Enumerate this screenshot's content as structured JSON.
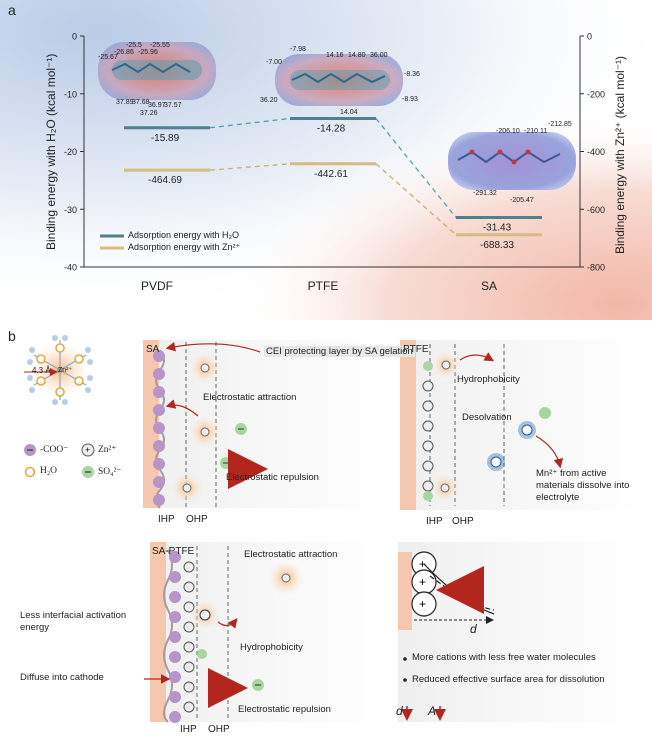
{
  "panel_a": {
    "label": "a",
    "left_axis_title": "Binding energy with H₂O (kcal mol⁻¹)",
    "right_axis_title": "Binding energy with Zn²⁺ (kcal mol⁻¹)",
    "legend": [
      "Adsorption energy with H₂O",
      "Adsorption energy with Zn²⁺"
    ],
    "colors": {
      "h2o": "#4f7f90",
      "zn": "#d7bb80",
      "h2o_dash": "#4aa3b3",
      "zn_dash": "#c9b16e"
    },
    "molecule_labels": {
      "pvdf": [
        "-25.5",
        "-25.55",
        "-25.67",
        "-26.86",
        "-25.96",
        "37.89",
        "37.68",
        "36.97",
        "37.57",
        "37.26"
      ],
      "ptfe": [
        "-7.98",
        "-7.00",
        "14.16",
        "14.80",
        "36.00",
        "-8.36",
        "36.20",
        "14.04",
        "-8.93"
      ],
      "sa": [
        "-212.85",
        "-206.10",
        "-210.11",
        "-291.32",
        "-205.47"
      ]
    }
  },
  "chart_data": {
    "type": "bar",
    "categories": [
      "PVDF",
      "PTFE",
      "SA"
    ],
    "series": [
      {
        "name": "Adsorption energy with H₂O",
        "axis": "left",
        "values": [
          -15.89,
          -14.28,
          -31.43
        ],
        "labels": [
          "-15.89",
          "-14.28",
          "-31.43"
        ]
      },
      {
        "name": "Adsorption energy with Zn²⁺",
        "axis": "right",
        "values": [
          -464.69,
          -442.61,
          -688.33
        ],
        "labels": [
          "-464.69",
          "-442.61",
          "-688.33"
        ]
      }
    ],
    "left_ylim": [
      -40,
      0
    ],
    "left_ticks": [
      "0",
      "-10",
      "-20",
      "-30",
      "-40"
    ],
    "right_ylim": [
      -800,
      0
    ],
    "right_ticks": [
      "0",
      "-200",
      "-400",
      "-600",
      "-800"
    ]
  },
  "panel_b": {
    "label": "b",
    "legend": {
      "distance": "4.3 Å",
      "zn": "Zn²⁺",
      "coo": "-COO⁻",
      "zn_ion": "Zn²⁺",
      "h2o": "H₂O",
      "so4": "SO₄²⁻"
    },
    "sa": {
      "title": "SA",
      "cei": "CEI protecting layer by SA gelation",
      "attraction": "Electrostatic attraction",
      "repulsion": "Electrostatic repulsion",
      "ihp": "IHP",
      "ohp": "OHP"
    },
    "ptfe": {
      "title": "PTFE",
      "hydrophobicity": "Hydrophobicity",
      "desolvation": "Desolvation",
      "mn_note": "Mn²⁺ from active materials dissolve into electrolyte",
      "ihp": "IHP",
      "ohp": "OHP"
    },
    "sa_ptfe": {
      "title": "SA-PTFE",
      "attraction": "Electrostatic attraction",
      "less_energy": "Less interfacial activation energy",
      "hydrophobicity": "Hydrophobicity",
      "diffuse": "Diffuse into cathode",
      "repulsion": "Electrostatic repulsion",
      "ihp": "IHP",
      "ohp": "OHP"
    },
    "summary": {
      "d_label": "d",
      "bullet1": "More cations with less free water molecules",
      "bullet2": "Reduced effective surface area for dissolution",
      "d_symbol": "d",
      "a_symbol": "A"
    }
  }
}
